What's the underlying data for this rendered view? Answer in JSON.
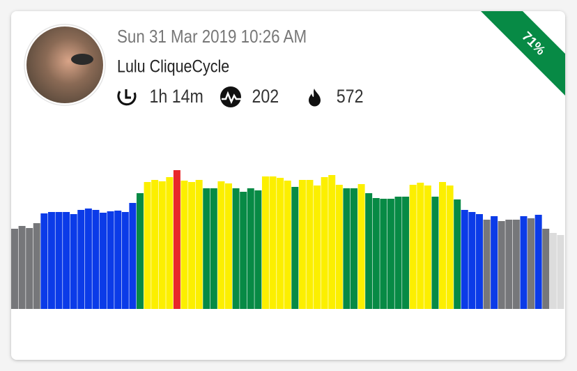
{
  "header": {
    "date": "Sun 31 Mar 2019 10:26 AM",
    "name": "Lulu CliqueCycle",
    "duration": "1h 14m",
    "effort": 202,
    "calories": 572,
    "ribbon": "71%"
  },
  "chart_data": {
    "type": "bar",
    "ylim": [
      0,
      200
    ],
    "values": [
      115,
      119,
      116,
      123,
      137,
      139,
      139,
      139,
      136,
      142,
      144,
      142,
      138,
      140,
      141,
      139,
      152,
      166,
      182,
      185,
      183,
      189,
      199,
      184,
      182,
      185,
      173,
      173,
      183,
      180,
      173,
      168,
      173,
      170,
      190,
      190,
      188,
      184,
      175,
      185,
      185,
      177,
      189,
      192,
      178,
      173,
      173,
      179,
      166,
      159,
      158,
      158,
      161,
      161,
      178,
      181,
      177,
      161,
      182,
      177,
      157,
      142,
      139,
      136,
      128,
      133,
      126,
      128,
      128,
      133,
      130,
      135,
      115,
      109,
      106
    ],
    "colors": [
      "#76777a",
      "#76777a",
      "#76777a",
      "#76777a",
      "#0b3be8",
      "#0b3be8",
      "#0b3be8",
      "#0b3be8",
      "#0b3be8",
      "#0b3be8",
      "#0b3be8",
      "#0b3be8",
      "#0b3be8",
      "#0b3be8",
      "#0b3be8",
      "#0b3be8",
      "#0b3be8",
      "#078a45",
      "#fcef00",
      "#fcef00",
      "#fcef00",
      "#fcef00",
      "#e8262a",
      "#fcef00",
      "#fcef00",
      "#fcef00",
      "#078a45",
      "#078a45",
      "#fcef00",
      "#fcef00",
      "#078a45",
      "#078a45",
      "#078a45",
      "#078a45",
      "#fcef00",
      "#fcef00",
      "#fcef00",
      "#fcef00",
      "#078a45",
      "#fcef00",
      "#fcef00",
      "#fcef00",
      "#fcef00",
      "#fcef00",
      "#fcef00",
      "#078a45",
      "#078a45",
      "#fcef00",
      "#078a45",
      "#078a45",
      "#078a45",
      "#078a45",
      "#078a45",
      "#078a45",
      "#fcef00",
      "#fcef00",
      "#fcef00",
      "#078a45",
      "#fcef00",
      "#fcef00",
      "#078a45",
      "#0b3be8",
      "#0b3be8",
      "#0b3be8",
      "#76777a",
      "#0b3be8",
      "#76777a",
      "#76777a",
      "#76777a",
      "#0b3be8",
      "#76777a",
      "#0b3be8",
      "#76777a",
      "#dcdcdc",
      "#dcdcdc"
    ]
  }
}
